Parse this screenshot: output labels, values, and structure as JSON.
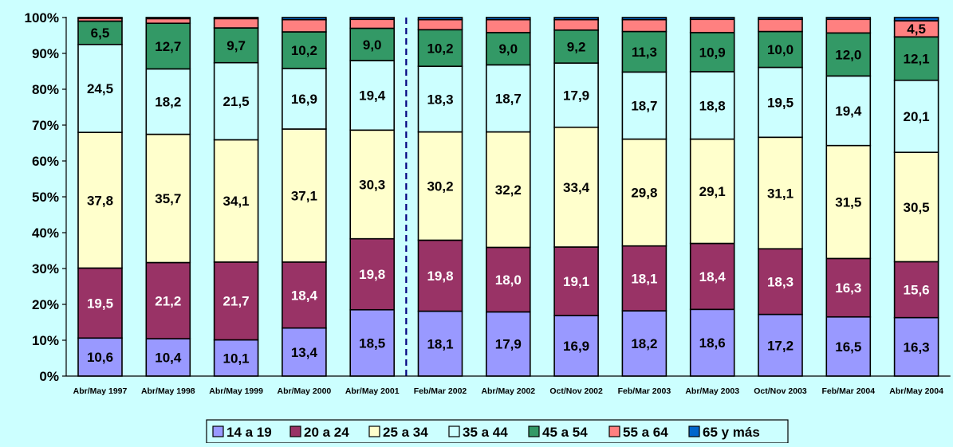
{
  "chart_data": {
    "type": "bar",
    "stacked": true,
    "percent_stacked": true,
    "title": "",
    "xlabel": "",
    "ylabel": "",
    "ylim": [
      0,
      100
    ],
    "y_ticks": [
      "0%",
      "10%",
      "20%",
      "30%",
      "40%",
      "50%",
      "60%",
      "70%",
      "80%",
      "90%",
      "100%"
    ],
    "grid": false,
    "legend_position": "bottom",
    "categories": [
      "Abr/May 1997",
      "Abr/May 1998",
      "Abr/May 1999",
      "Abr/May 2000",
      "Abr/May 2001",
      "Feb/Mar 2002",
      "Abr/May 2002",
      "Oct/Nov 2002",
      "Feb/Mar 2003",
      "Abr/May 2003",
      "Oct/Nov 2003",
      "Feb/Mar 2004",
      "Abr/May 2004"
    ],
    "divider_after_category": "Abr/May 2001",
    "series": [
      {
        "name": "14 a 19",
        "color": "#9999ff",
        "label_color": "#000000",
        "values": [
          10.6,
          10.4,
          10.1,
          13.4,
          18.5,
          18.1,
          17.9,
          16.9,
          18.2,
          18.6,
          17.2,
          16.5,
          16.3
        ],
        "labels": [
          "10,6",
          "10,4",
          "10,1",
          "13,4",
          "18,5",
          "18,1",
          "17,9",
          "16,9",
          "18,2",
          "18,6",
          "17,2",
          "16,5",
          "16,3"
        ]
      },
      {
        "name": "20 a 24",
        "color": "#993366",
        "label_color": "#ffffff",
        "values": [
          19.5,
          21.2,
          21.7,
          18.4,
          19.8,
          19.8,
          18.0,
          19.1,
          18.1,
          18.4,
          18.3,
          16.3,
          15.6
        ],
        "labels": [
          "19,5",
          "21,2",
          "21,7",
          "18,4",
          "19,8",
          "19,8",
          "18,0",
          "19,1",
          "18,1",
          "18,4",
          "18,3",
          "16,3",
          "15,6"
        ]
      },
      {
        "name": "25 a 34",
        "color": "#ffffcc",
        "label_color": "#000000",
        "values": [
          37.8,
          35.7,
          34.1,
          37.1,
          30.3,
          30.2,
          32.2,
          33.4,
          29.8,
          29.1,
          31.1,
          31.5,
          30.5
        ],
        "labels": [
          "37,8",
          "35,7",
          "34,1",
          "37,1",
          "30,3",
          "30,2",
          "32,2",
          "33,4",
          "29,8",
          "29,1",
          "31,1",
          "31,5",
          "30,5"
        ]
      },
      {
        "name": "35 a 44",
        "color": "#ccffff",
        "label_color": "#000000",
        "values": [
          24.5,
          18.2,
          21.5,
          16.9,
          19.4,
          18.3,
          18.7,
          17.9,
          18.7,
          18.8,
          19.5,
          19.4,
          20.1
        ],
        "labels": [
          "24,5",
          "18,2",
          "21,5",
          "16,9",
          "19,4",
          "18,3",
          "18,7",
          "17,9",
          "18,7",
          "18,8",
          "19,5",
          "19,4",
          "20,1"
        ]
      },
      {
        "name": "45 a 54",
        "color": "#339966",
        "label_color": "#000000",
        "values": [
          6.5,
          12.7,
          9.7,
          10.2,
          9.0,
          10.2,
          9.0,
          9.2,
          11.3,
          10.9,
          10.0,
          12.0,
          12.1
        ],
        "labels": [
          "6,5",
          "12,7",
          "9,7",
          "10,2",
          "9,0",
          "10,2",
          "9,0",
          "9,2",
          "11,3",
          "10,9",
          "10,0",
          "12,0",
          "12,1"
        ]
      },
      {
        "name": "55 a 64",
        "color": "#ff8080",
        "label_color": "#000000",
        "values": [
          0.8,
          1.3,
          2.6,
          3.4,
          2.5,
          2.8,
          3.6,
          2.9,
          3.3,
          3.7,
          3.4,
          3.8,
          4.5
        ],
        "labels": [
          "",
          "",
          "",
          "",
          "",
          "",
          "",
          "",
          "",
          "",
          "",
          "",
          "4,5"
        ]
      },
      {
        "name": "65 y más",
        "color": "#0066cc",
        "label_color": "#ffffff",
        "values": [
          0.2,
          0.3,
          0.3,
          0.6,
          0.5,
          0.6,
          0.6,
          0.6,
          0.6,
          0.5,
          0.5,
          0.5,
          0.9
        ],
        "labels": [
          "",
          "",
          "",
          "",
          "",
          "",
          "",
          "",
          "",
          "",
          "",
          "",
          ""
        ]
      }
    ]
  }
}
